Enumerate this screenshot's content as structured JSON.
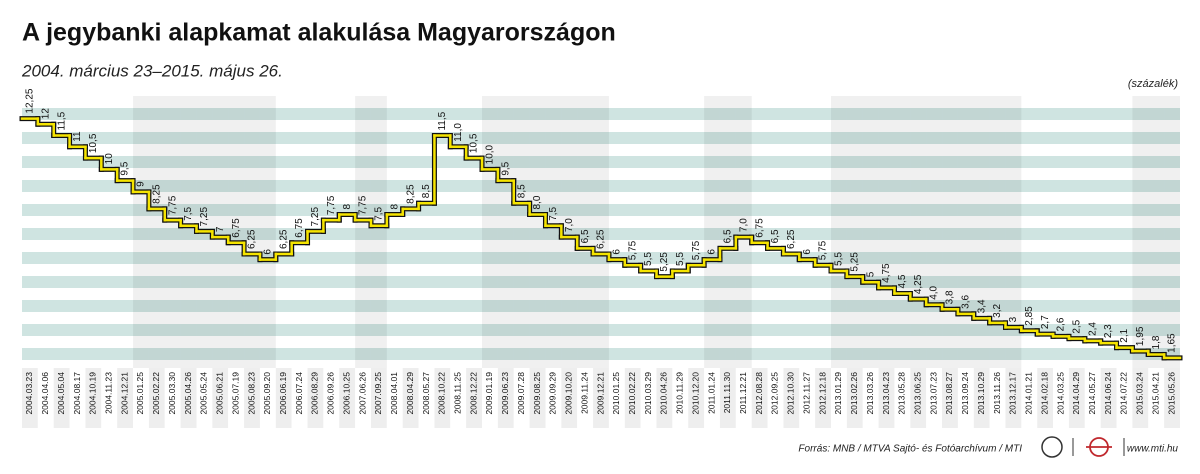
{
  "chart_data": {
    "type": "step",
    "title": "A jegybanki alapkamat alakulása Magyarországon",
    "subtitle": "2004. március 23–2015. május 26.",
    "unit": "(százalék)",
    "source": "Forrás: MNB / MTVA Sajtó- és Fotóarchívum / MTI",
    "website": "www.mti.hu",
    "categories": [
      "2004.03.23",
      "2004.04.06",
      "2004.05.04",
      "2004.08.17",
      "2004.10.19",
      "2004.11.23",
      "2004.12.21",
      "2005.01.25",
      "2005.02.22",
      "2005.03.30",
      "2005.04.26",
      "2005.05.24",
      "2005.06.21",
      "2005.07.19",
      "2005.08.23",
      "2005.09.20",
      "2006.06.19",
      "2006.07.24",
      "2006.08.29",
      "2006.09.26",
      "2006.10.25",
      "2007.06.26",
      "2007.09.25",
      "2008.04.01",
      "2008.04.29",
      "2008.05.27",
      "2008.10.22",
      "2008.11.25",
      "2008.12.22",
      "2009.01.19",
      "2009.06.23",
      "2009.07.28",
      "2009.08.25",
      "2009.09.29",
      "2009.10.20",
      "2009.11.24",
      "2009.12.21",
      "2010.01.25",
      "2010.02.22",
      "2010.03.29",
      "2010.04.26",
      "2010.11.29",
      "2010.12.20",
      "2011.01.24",
      "2011.11.30",
      "2011.12.21",
      "2012.08.28",
      "2012.09.25",
      "2012.10.30",
      "2012.11.27",
      "2012.12.18",
      "2013.01.29",
      "2013.02.26",
      "2013.03.26",
      "2013.04.23",
      "2013.05.28",
      "2013.06.25",
      "2013.07.23",
      "2013.08.27",
      "2013.09.24",
      "2013.10.29",
      "2013.11.26",
      "2013.12.17",
      "2014.01.21",
      "2014.02.18",
      "2014.03.25",
      "2014.04.29",
      "2014.05.27",
      "2014.06.24",
      "2014.07.22",
      "2015.03.24",
      "2015.04.21",
      "2015.05.26"
    ],
    "values": [
      12.25,
      12,
      11.5,
      11,
      10.5,
      10,
      9.5,
      9,
      8.25,
      7.75,
      7.5,
      7.25,
      7,
      6.75,
      6.25,
      6,
      6.25,
      6.75,
      7.25,
      7.75,
      8,
      7.75,
      7.5,
      8,
      8.25,
      8.5,
      11.5,
      11.0,
      10.5,
      10.0,
      9.5,
      8.5,
      8.0,
      7.5,
      7.0,
      6.5,
      6.25,
      6,
      5.75,
      5.5,
      5.25,
      5.5,
      5.75,
      6,
      6.5,
      7.0,
      6.75,
      6.5,
      6.25,
      6,
      5.75,
      5.5,
      5.25,
      5,
      4.75,
      4.5,
      4.25,
      4.0,
      3.8,
      3.6,
      3.4,
      3.2,
      3,
      2.85,
      2.7,
      2.6,
      2.5,
      2.4,
      2.3,
      2.1,
      1.95,
      1.8,
      1.65
    ],
    "value_labels": [
      "12,25",
      "12",
      "11,5",
      "11",
      "10,5",
      "10",
      "9,5",
      "9",
      "8,25",
      "7,75",
      "7,5",
      "7,25",
      "7",
      "6,75",
      "6,25",
      "6",
      "6,25",
      "6,75",
      "7,25",
      "7,75",
      "8",
      "7,75",
      "7,5",
      "8",
      "8,25",
      "8,5",
      "11,5",
      "11,0",
      "10,5",
      "10,0",
      "9,5",
      "8,5",
      "8,0",
      "7,5",
      "7,0",
      "6,5",
      "6,25",
      "6",
      "5,75",
      "5,5",
      "5,25",
      "5,5",
      "5,75",
      "6",
      "6,5",
      "7,0",
      "6,75",
      "6,5",
      "6,25",
      "6",
      "5,75",
      "5,5",
      "5,25",
      "5",
      "4,75",
      "4,5",
      "4,25",
      "4,0",
      "3,8",
      "3,6",
      "3,4",
      "3,2",
      "3",
      "2,85",
      "2,7",
      "2,6",
      "2,5",
      "2,4",
      "2,3",
      "2,1",
      "1,95",
      "1,8",
      "1,65"
    ],
    "color": "#f5e400",
    "ylim": [
      1.2,
      13.25
    ]
  }
}
